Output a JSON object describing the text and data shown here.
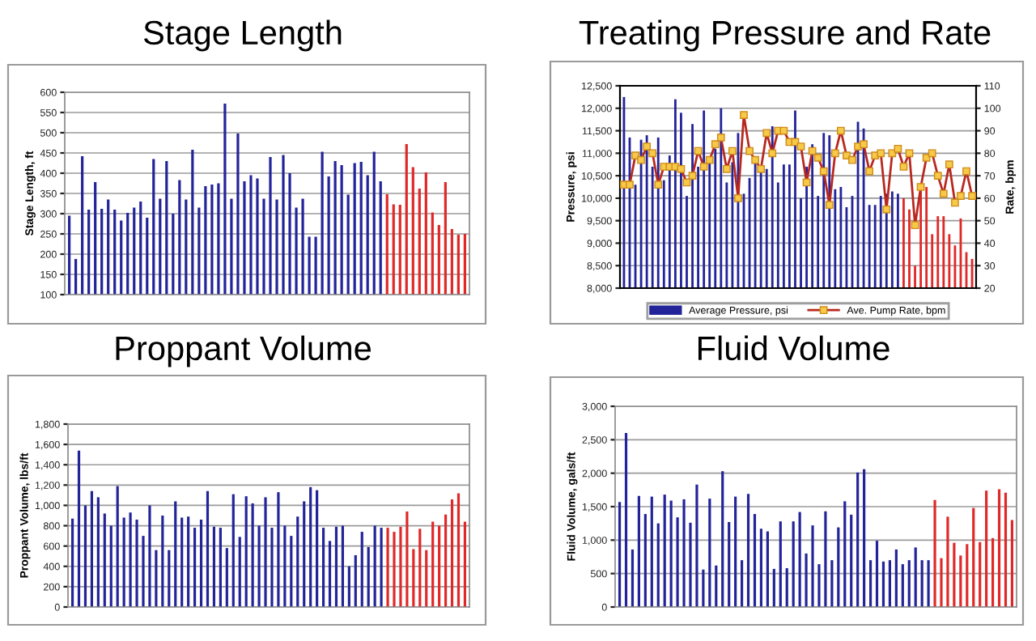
{
  "chart_data": [
    {
      "type": "bar",
      "title": "Stage Length",
      "ylabel": "Stage Length, ft",
      "grid": "y",
      "categories": [
        null,
        null,
        null,
        null,
        null,
        null,
        null,
        null,
        null,
        null,
        null,
        null,
        null,
        null,
        null,
        null,
        null,
        null,
        null,
        null,
        null,
        null,
        null,
        null,
        null,
        null,
        null,
        null,
        null,
        null,
        null,
        null,
        null,
        null,
        null,
        null,
        null,
        null,
        null,
        null,
        null,
        null,
        null,
        null,
        null,
        null,
        null,
        null,
        null,
        null,
        null,
        null,
        null,
        null,
        null,
        null,
        null,
        null,
        null,
        null,
        null,
        null
      ],
      "values": [
        295,
        188,
        442,
        310,
        378,
        312,
        335,
        310,
        283,
        302,
        315,
        330,
        290,
        435,
        337,
        430,
        300,
        383,
        335,
        458,
        315,
        368,
        372,
        375,
        572,
        337,
        498,
        380,
        395,
        387,
        337,
        440,
        335,
        445,
        400,
        315,
        337,
        243,
        243,
        453,
        392,
        430,
        420,
        347,
        425,
        428,
        395,
        453,
        380,
        348,
        323,
        322,
        472,
        415,
        362,
        402,
        303,
        272,
        378,
        262,
        248,
        250
      ],
      "colors": [
        "#23239a",
        "#23239a",
        "#23239a",
        "#23239a",
        "#23239a",
        "#23239a",
        "#23239a",
        "#23239a",
        "#23239a",
        "#23239a",
        "#23239a",
        "#23239a",
        "#23239a",
        "#23239a",
        "#23239a",
        "#23239a",
        "#23239a",
        "#23239a",
        "#23239a",
        "#23239a",
        "#23239a",
        "#23239a",
        "#23239a",
        "#23239a",
        "#23239a",
        "#23239a",
        "#23239a",
        "#23239a",
        "#23239a",
        "#23239a",
        "#23239a",
        "#23239a",
        "#23239a",
        "#23239a",
        "#23239a",
        "#23239a",
        "#23239a",
        "#23239a",
        "#23239a",
        "#23239a",
        "#23239a",
        "#23239a",
        "#23239a",
        "#23239a",
        "#23239a",
        "#23239a",
        "#23239a",
        "#23239a",
        "#23239a",
        "#e02828",
        "#e02828",
        "#e02828",
        "#e02828",
        "#e02828",
        "#e02828",
        "#e02828",
        "#e02828",
        "#e02828",
        "#e02828",
        "#e02828",
        "#e02828",
        "#e02828"
      ],
      "ylim": [
        100,
        600
      ],
      "yticks": [
        100,
        150,
        200,
        250,
        300,
        350,
        400,
        450,
        500,
        550,
        600
      ]
    },
    {
      "type": "bar",
      "title": "Treating Pressure and Rate",
      "ylabel": "Pressure, psi",
      "y2label": "Rate, bpm",
      "grid": "y",
      "legend": "bottom",
      "marker": "square",
      "categories": [
        null,
        null,
        null,
        null,
        null,
        null,
        null,
        null,
        null,
        null,
        null,
        null,
        null,
        null,
        null,
        null,
        null,
        null,
        null,
        null,
        null,
        null,
        null,
        null,
        null,
        null,
        null,
        null,
        null,
        null,
        null,
        null,
        null,
        null,
        null,
        null,
        null,
        null,
        null,
        null,
        null,
        null,
        null,
        null,
        null,
        null,
        null,
        null,
        null,
        null,
        null,
        null,
        null,
        null,
        null,
        null,
        null,
        null,
        null,
        null,
        null,
        null
      ],
      "series": [
        {
          "name": "Average Pressure, psi",
          "type": "bar",
          "color": "#23239a",
          "colors": [
            "#23239a",
            "#23239a",
            "#23239a",
            "#23239a",
            "#23239a",
            "#23239a",
            "#23239a",
            "#23239a",
            "#23239a",
            "#23239a",
            "#23239a",
            "#23239a",
            "#23239a",
            "#23239a",
            "#23239a",
            "#23239a",
            "#23239a",
            "#23239a",
            "#23239a",
            "#23239a",
            "#23239a",
            "#23239a",
            "#23239a",
            "#23239a",
            "#23239a",
            "#23239a",
            "#23239a",
            "#23239a",
            "#23239a",
            "#23239a",
            "#23239a",
            "#23239a",
            "#23239a",
            "#23239a",
            "#23239a",
            "#23239a",
            "#23239a",
            "#23239a",
            "#23239a",
            "#23239a",
            "#23239a",
            "#23239a",
            "#23239a",
            "#23239a",
            "#23239a",
            "#23239a",
            "#23239a",
            "#23239a",
            "#23239a",
            "#e02828",
            "#e02828",
            "#e02828",
            "#e02828",
            "#e02828",
            "#e02828",
            "#e02828",
            "#e02828",
            "#e02828",
            "#e02828",
            "#e02828",
            "#e02828",
            "#e02828"
          ],
          "values": [
            12250,
            11350,
            10300,
            11300,
            11400,
            10700,
            11350,
            10400,
            10950,
            12200,
            11900,
            10050,
            11650,
            10700,
            11950,
            10900,
            11100,
            12000,
            10350,
            10800,
            11450,
            10100,
            10450,
            10800,
            10700,
            10650,
            11600,
            10350,
            10750,
            10750,
            11950,
            10000,
            10700,
            11200,
            10050,
            11450,
            11400,
            10200,
            10250,
            9800,
            10050,
            11700,
            11550,
            9850,
            9850,
            10050,
            10100,
            10150,
            10100,
            10000,
            9750,
            8500,
            10250,
            10250,
            9200,
            9600,
            9600,
            9200,
            8950,
            9550,
            8800,
            8650
          ]
        },
        {
          "name": "Ave. Pump Rate, bpm",
          "type": "line",
          "axis": "y2",
          "color": "#b8281e",
          "values": [
            66,
            66,
            79,
            77,
            83,
            80,
            66,
            74,
            74,
            74,
            73,
            67,
            70,
            81,
            74,
            77,
            84,
            87,
            73,
            81,
            60,
            97,
            81,
            77,
            73,
            89,
            80,
            90,
            90,
            85,
            85,
            83,
            67,
            81,
            78,
            72,
            57,
            80,
            90,
            79,
            77,
            83,
            84,
            72,
            79,
            80,
            55,
            80,
            82,
            74,
            80,
            48,
            65,
            78,
            80,
            70,
            62,
            75,
            58,
            61,
            72,
            61
          ]
        }
      ],
      "ylim": [
        8000,
        12500
      ],
      "yticks": [
        {
          "value": 8000,
          "label": "8,000"
        },
        {
          "value": 8500,
          "label": "8,500"
        },
        {
          "value": 9000,
          "label": "9,000"
        },
        {
          "value": 9500,
          "label": "9,500"
        },
        {
          "value": 10000,
          "label": "10,000"
        },
        {
          "value": 10500,
          "label": "10,500"
        },
        {
          "value": 11000,
          "label": "11,000"
        },
        {
          "value": 11500,
          "label": "11,500"
        },
        {
          "value": 12000,
          "label": "12,000"
        },
        {
          "value": 12500,
          "label": "12,500"
        }
      ],
      "y2lim": [
        20,
        110
      ],
      "y2ticks": [
        20,
        30,
        40,
        50,
        60,
        70,
        80,
        90,
        100,
        110
      ]
    },
    {
      "type": "bar",
      "title": "Proppant Volume",
      "ylabel": "Proppant Volume, lbs/ft",
      "grid": "y",
      "categories": [
        null,
        null,
        null,
        null,
        null,
        null,
        null,
        null,
        null,
        null,
        null,
        null,
        null,
        null,
        null,
        null,
        null,
        null,
        null,
        null,
        null,
        null,
        null,
        null,
        null,
        null,
        null,
        null,
        null,
        null,
        null,
        null,
        null,
        null,
        null,
        null,
        null,
        null,
        null,
        null,
        null,
        null,
        null,
        null,
        null,
        null,
        null,
        null,
        null,
        null,
        null,
        null,
        null,
        null,
        null,
        null,
        null,
        null,
        null,
        null,
        null,
        null
      ],
      "values": [
        870,
        1540,
        1000,
        1140,
        1080,
        920,
        800,
        1190,
        880,
        930,
        860,
        700,
        1000,
        560,
        900,
        560,
        1040,
        880,
        890,
        780,
        860,
        1140,
        790,
        780,
        580,
        1110,
        690,
        1090,
        1020,
        800,
        1080,
        780,
        1130,
        800,
        700,
        890,
        1040,
        1180,
        1150,
        780,
        650,
        790,
        800,
        400,
        510,
        740,
        590,
        800,
        780,
        780,
        740,
        790,
        940,
        570,
        770,
        560,
        840,
        800,
        910,
        1060,
        1120,
        840
      ],
      "colors": [
        "#23239a",
        "#23239a",
        "#23239a",
        "#23239a",
        "#23239a",
        "#23239a",
        "#23239a",
        "#23239a",
        "#23239a",
        "#23239a",
        "#23239a",
        "#23239a",
        "#23239a",
        "#23239a",
        "#23239a",
        "#23239a",
        "#23239a",
        "#23239a",
        "#23239a",
        "#23239a",
        "#23239a",
        "#23239a",
        "#23239a",
        "#23239a",
        "#23239a",
        "#23239a",
        "#23239a",
        "#23239a",
        "#23239a",
        "#23239a",
        "#23239a",
        "#23239a",
        "#23239a",
        "#23239a",
        "#23239a",
        "#23239a",
        "#23239a",
        "#23239a",
        "#23239a",
        "#23239a",
        "#23239a",
        "#23239a",
        "#23239a",
        "#23239a",
        "#23239a",
        "#23239a",
        "#23239a",
        "#23239a",
        "#23239a",
        "#e02828",
        "#e02828",
        "#e02828",
        "#e02828",
        "#e02828",
        "#e02828",
        "#e02828",
        "#e02828",
        "#e02828",
        "#e02828",
        "#e02828",
        "#e02828",
        "#e02828"
      ],
      "ylim": [
        0,
        1800
      ],
      "yticks": [
        0,
        200,
        400,
        600,
        800,
        {
          "value": 1000,
          "label": "1,000"
        },
        {
          "value": 1200,
          "label": "1,200"
        },
        {
          "value": 1400,
          "label": "1,400"
        },
        {
          "value": 1600,
          "label": "1,600"
        },
        {
          "value": 1800,
          "label": "1,800"
        }
      ]
    },
    {
      "type": "bar",
      "title": "Fluid Volume",
      "ylabel": "Fluid Volume, gals/ft",
      "grid": "y",
      "categories": [
        null,
        null,
        null,
        null,
        null,
        null,
        null,
        null,
        null,
        null,
        null,
        null,
        null,
        null,
        null,
        null,
        null,
        null,
        null,
        null,
        null,
        null,
        null,
        null,
        null,
        null,
        null,
        null,
        null,
        null,
        null,
        null,
        null,
        null,
        null,
        null,
        null,
        null,
        null,
        null,
        null,
        null,
        null,
        null,
        null,
        null,
        null,
        null,
        null,
        null,
        null,
        null,
        null,
        null,
        null,
        null,
        null,
        null,
        null,
        null,
        null,
        null
      ],
      "values": [
        1570,
        2600,
        860,
        1660,
        1390,
        1650,
        1250,
        1680,
        1590,
        1340,
        1610,
        1260,
        1830,
        560,
        1620,
        620,
        2030,
        1270,
        1650,
        700,
        1690,
        1390,
        1170,
        1130,
        570,
        1280,
        580,
        1280,
        1420,
        800,
        1220,
        640,
        1430,
        700,
        1190,
        1580,
        1380,
        2010,
        2060,
        700,
        990,
        680,
        700,
        860,
        640,
        700,
        890,
        700,
        700,
        1600,
        730,
        1350,
        960,
        770,
        940,
        1480,
        970,
        1740,
        1030,
        1760,
        1710,
        1300
      ],
      "colors": [
        "#23239a",
        "#23239a",
        "#23239a",
        "#23239a",
        "#23239a",
        "#23239a",
        "#23239a",
        "#23239a",
        "#23239a",
        "#23239a",
        "#23239a",
        "#23239a",
        "#23239a",
        "#23239a",
        "#23239a",
        "#23239a",
        "#23239a",
        "#23239a",
        "#23239a",
        "#23239a",
        "#23239a",
        "#23239a",
        "#23239a",
        "#23239a",
        "#23239a",
        "#23239a",
        "#23239a",
        "#23239a",
        "#23239a",
        "#23239a",
        "#23239a",
        "#23239a",
        "#23239a",
        "#23239a",
        "#23239a",
        "#23239a",
        "#23239a",
        "#23239a",
        "#23239a",
        "#23239a",
        "#23239a",
        "#23239a",
        "#23239a",
        "#23239a",
        "#23239a",
        "#23239a",
        "#23239a",
        "#23239a",
        "#23239a",
        "#e02828",
        "#e02828",
        "#e02828",
        "#e02828",
        "#e02828",
        "#e02828",
        "#e02828",
        "#e02828",
        "#e02828",
        "#e02828",
        "#e02828",
        "#e02828",
        "#e02828"
      ],
      "ylim": [
        0,
        3000
      ],
      "yticks": [
        0,
        500,
        {
          "value": 1000,
          "label": "1,000"
        },
        {
          "value": 1500,
          "label": "1,500"
        },
        {
          "value": 2000,
          "label": "2,000"
        },
        {
          "value": 2500,
          "label": "2,500"
        },
        {
          "value": 3000,
          "label": "3,000"
        }
      ]
    }
  ]
}
